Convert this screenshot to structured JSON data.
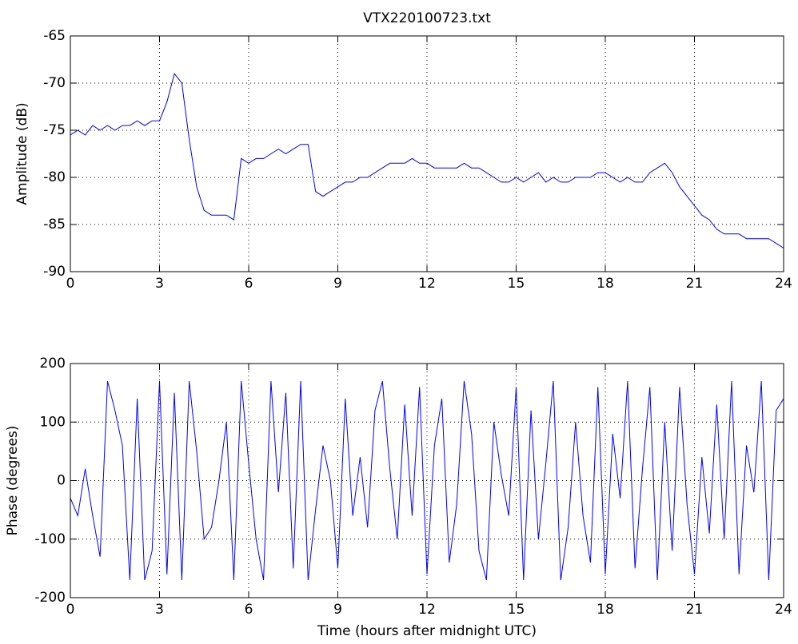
{
  "chart_data": [
    {
      "type": "line",
      "title": "VTX220100723.txt",
      "ylabel": "Amplitude (dB)",
      "color": "#0000ff",
      "grid": true,
      "xlim": [
        0,
        24
      ],
      "xticks": [
        0,
        3,
        6,
        9,
        12,
        15,
        18,
        21,
        24
      ],
      "ylim": [
        -90,
        -65
      ],
      "yticks": [
        -90,
        -85,
        -80,
        -75,
        -70,
        -65
      ],
      "x": [
        0,
        0.25,
        0.5,
        0.75,
        1,
        1.25,
        1.5,
        1.75,
        2,
        2.25,
        2.5,
        2.75,
        3,
        3.25,
        3.5,
        3.75,
        4,
        4.25,
        4.5,
        4.75,
        5,
        5.25,
        5.5,
        5.75,
        6,
        6.25,
        6.5,
        6.75,
        7,
        7.25,
        7.5,
        7.75,
        8,
        8.25,
        8.5,
        8.75,
        9,
        9.25,
        9.5,
        9.75,
        10,
        10.25,
        10.5,
        10.75,
        11,
        11.25,
        11.5,
        11.75,
        12,
        12.25,
        12.5,
        12.75,
        13,
        13.25,
        13.5,
        13.75,
        14,
        14.25,
        14.5,
        14.75,
        15,
        15.25,
        15.5,
        15.75,
        16,
        16.25,
        16.5,
        16.75,
        17,
        17.25,
        17.5,
        17.75,
        18,
        18.25,
        18.5,
        18.75,
        19,
        19.25,
        19.5,
        19.75,
        20,
        20.25,
        20.5,
        20.75,
        21,
        21.25,
        21.5,
        21.75,
        22,
        22.25,
        22.5,
        22.75,
        23,
        23.25,
        23.5,
        23.75,
        24
      ],
      "values": [
        -75.5,
        -75,
        -75.5,
        -74.5,
        -75,
        -74.5,
        -75,
        -74.5,
        -74.5,
        -74,
        -74.5,
        -74,
        -74,
        -72,
        -69,
        -70,
        -76,
        -81,
        -83.5,
        -84,
        -84,
        -84,
        -84.5,
        -78,
        -78.5,
        -78,
        -78,
        -77.5,
        -77,
        -77.5,
        -77,
        -76.5,
        -76.5,
        -81.5,
        -82,
        -81.5,
        -81,
        -80.5,
        -80.5,
        -80,
        -80,
        -79.5,
        -79,
        -78.5,
        -78.5,
        -78.5,
        -78,
        -78.5,
        -78.5,
        -79,
        -79,
        -79,
        -79,
        -78.5,
        -79,
        -79,
        -79.5,
        -80,
        -80.5,
        -80.5,
        -80,
        -80.5,
        -80,
        -79.5,
        -80.5,
        -80,
        -80.5,
        -80.5,
        -80,
        -80,
        -80,
        -79.5,
        -79.5,
        -80,
        -80.5,
        -80,
        -80.5,
        -80.5,
        -79.5,
        -79,
        -78.5,
        -79.5,
        -81,
        -82,
        -83,
        -84,
        -84.5,
        -85.5,
        -86,
        -86,
        -86,
        -86.5,
        -86.5,
        -86.5,
        -86.5,
        -87,
        -87.5
      ]
    },
    {
      "type": "line",
      "ylabel": "Phase (degrees)",
      "xlabel": "Time (hours after midnight UTC)",
      "color": "#0000ff",
      "grid": true,
      "xlim": [
        0,
        24
      ],
      "xticks": [
        0,
        3,
        6,
        9,
        12,
        15,
        18,
        21,
        24
      ],
      "ylim": [
        -200,
        200
      ],
      "yticks": [
        -200,
        -100,
        0,
        100,
        200
      ],
      "x": [
        0,
        0.25,
        0.5,
        0.75,
        1,
        1.25,
        1.5,
        1.75,
        2,
        2.25,
        2.5,
        2.75,
        3,
        3.25,
        3.5,
        3.75,
        4,
        4.25,
        4.5,
        4.75,
        5,
        5.25,
        5.5,
        5.75,
        6,
        6.25,
        6.5,
        6.75,
        7,
        7.25,
        7.5,
        7.75,
        8,
        8.25,
        8.5,
        8.75,
        9,
        9.25,
        9.5,
        9.75,
        10,
        10.25,
        10.5,
        10.75,
        11,
        11.25,
        11.5,
        11.75,
        12,
        12.25,
        12.5,
        12.75,
        13,
        13.25,
        13.5,
        13.75,
        14,
        14.25,
        14.5,
        14.75,
        15,
        15.25,
        15.5,
        15.75,
        16,
        16.25,
        16.5,
        16.75,
        17,
        17.25,
        17.5,
        17.75,
        18,
        18.25,
        18.5,
        18.75,
        19,
        19.25,
        19.5,
        19.75,
        20,
        20.25,
        20.5,
        20.75,
        21,
        21.25,
        21.5,
        21.75,
        22,
        22.25,
        22.5,
        22.75,
        23,
        23.25,
        23.5,
        23.75,
        24
      ],
      "values": [
        -30,
        -60,
        20,
        -60,
        -130,
        170,
        120,
        60,
        -170,
        140,
        -170,
        -120,
        170,
        -160,
        150,
        -170,
        170,
        50,
        -100,
        -80,
        0,
        100,
        -170,
        170,
        30,
        -100,
        -170,
        170,
        -20,
        150,
        -150,
        170,
        -170,
        -50,
        60,
        0,
        -150,
        140,
        -60,
        40,
        -80,
        120,
        170,
        20,
        -100,
        130,
        -60,
        160,
        -160,
        60,
        140,
        -140,
        -40,
        170,
        80,
        -120,
        -170,
        100,
        10,
        -60,
        160,
        -170,
        120,
        -100,
        30,
        170,
        -170,
        -80,
        100,
        -60,
        -140,
        160,
        -160,
        80,
        -30,
        170,
        -150,
        20,
        160,
        -170,
        100,
        -120,
        160,
        -40,
        -160,
        40,
        -90,
        130,
        -100,
        170,
        -160,
        60,
        -20,
        170,
        -170,
        120,
        140
      ]
    }
  ]
}
